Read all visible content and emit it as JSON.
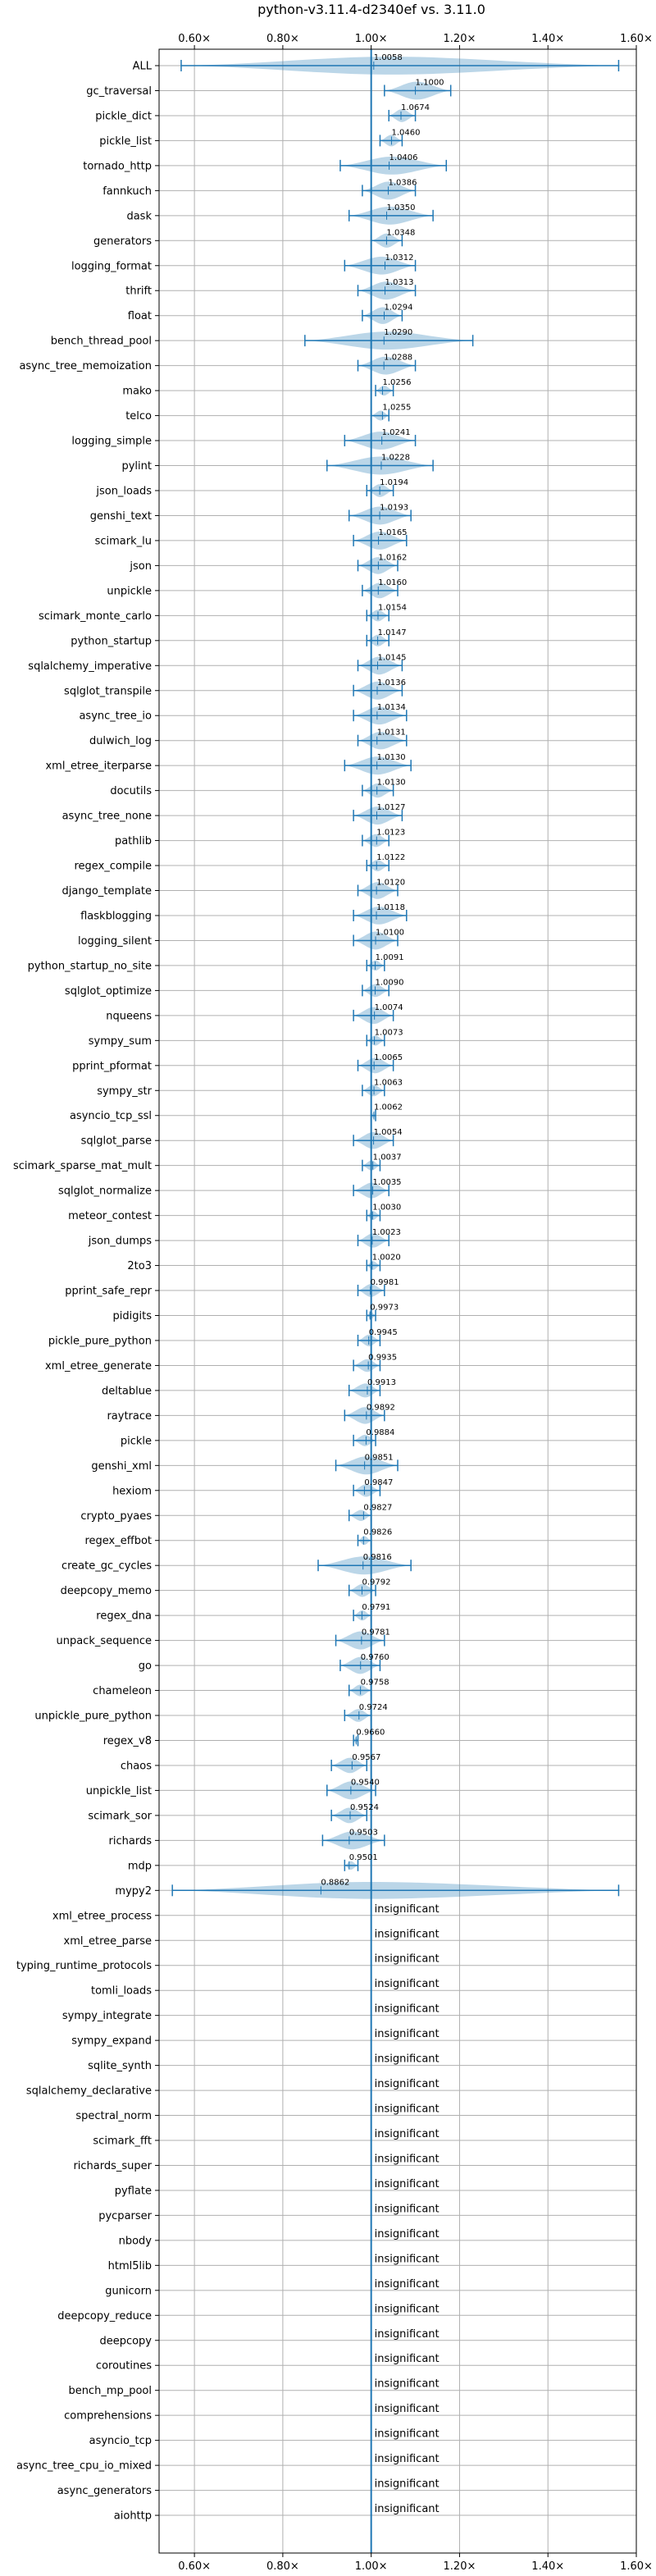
{
  "chart_data": {
    "type": "violin",
    "title": "python-v3.11.4-d2340ef vs. 3.11.0",
    "xlim": [
      0.52,
      1.6
    ],
    "x_ticks": [
      0.6,
      0.8,
      1.0,
      1.2,
      1.4,
      1.6
    ],
    "x_tick_labels": [
      "0.60×",
      "0.80×",
      "1.00×",
      "1.20×",
      "1.40×",
      "1.60×"
    ],
    "reference_line": 1.0,
    "grid": true,
    "color": "#1f77b4",
    "insignificant_label": "insignificant",
    "benchmarks": [
      {
        "name": "ALL",
        "mean": 1.0058,
        "lo": 0.57,
        "hi": 1.56
      },
      {
        "name": "gc_traversal",
        "mean": 1.1,
        "lo": 1.03,
        "hi": 1.18
      },
      {
        "name": "pickle_dict",
        "mean": 1.0674,
        "lo": 1.04,
        "hi": 1.1
      },
      {
        "name": "pickle_list",
        "mean": 1.046,
        "lo": 1.02,
        "hi": 1.07
      },
      {
        "name": "tornado_http",
        "mean": 1.0406,
        "lo": 0.93,
        "hi": 1.17
      },
      {
        "name": "fannkuch",
        "mean": 1.0386,
        "lo": 0.98,
        "hi": 1.1
      },
      {
        "name": "dask",
        "mean": 1.035,
        "lo": 0.95,
        "hi": 1.14
      },
      {
        "name": "generators",
        "mean": 1.0348,
        "lo": 1.0,
        "hi": 1.07
      },
      {
        "name": "logging_format",
        "mean": 1.0312,
        "lo": 0.94,
        "hi": 1.1
      },
      {
        "name": "thrift",
        "mean": 1.0313,
        "lo": 0.97,
        "hi": 1.1
      },
      {
        "name": "float",
        "mean": 1.0294,
        "lo": 0.98,
        "hi": 1.07
      },
      {
        "name": "bench_thread_pool",
        "mean": 1.029,
        "lo": 0.85,
        "hi": 1.23
      },
      {
        "name": "async_tree_memoization",
        "mean": 1.0288,
        "lo": 0.97,
        "hi": 1.1
      },
      {
        "name": "mako",
        "mean": 1.0256,
        "lo": 1.01,
        "hi": 1.05
      },
      {
        "name": "telco",
        "mean": 1.0255,
        "lo": 1.0,
        "hi": 1.04
      },
      {
        "name": "logging_simple",
        "mean": 1.0241,
        "lo": 0.94,
        "hi": 1.1
      },
      {
        "name": "pylint",
        "mean": 1.0228,
        "lo": 0.9,
        "hi": 1.14
      },
      {
        "name": "json_loads",
        "mean": 1.0194,
        "lo": 0.99,
        "hi": 1.05
      },
      {
        "name": "genshi_text",
        "mean": 1.0193,
        "lo": 0.95,
        "hi": 1.09
      },
      {
        "name": "scimark_lu",
        "mean": 1.0165,
        "lo": 0.96,
        "hi": 1.08
      },
      {
        "name": "json",
        "mean": 1.0162,
        "lo": 0.97,
        "hi": 1.06
      },
      {
        "name": "unpickle",
        "mean": 1.016,
        "lo": 0.98,
        "hi": 1.06
      },
      {
        "name": "scimark_monte_carlo",
        "mean": 1.0154,
        "lo": 0.99,
        "hi": 1.04
      },
      {
        "name": "python_startup",
        "mean": 1.0147,
        "lo": 0.99,
        "hi": 1.04
      },
      {
        "name": "sqlalchemy_imperative",
        "mean": 1.0145,
        "lo": 0.97,
        "hi": 1.07
      },
      {
        "name": "sqlglot_transpile",
        "mean": 1.0136,
        "lo": 0.96,
        "hi": 1.07
      },
      {
        "name": "async_tree_io",
        "mean": 1.0134,
        "lo": 0.96,
        "hi": 1.08
      },
      {
        "name": "dulwich_log",
        "mean": 1.0131,
        "lo": 0.97,
        "hi": 1.08
      },
      {
        "name": "xml_etree_iterparse",
        "mean": 1.013,
        "lo": 0.94,
        "hi": 1.09
      },
      {
        "name": "docutils",
        "mean": 1.013,
        "lo": 0.98,
        "hi": 1.05
      },
      {
        "name": "async_tree_none",
        "mean": 1.0127,
        "lo": 0.96,
        "hi": 1.07
      },
      {
        "name": "pathlib",
        "mean": 1.0123,
        "lo": 0.98,
        "hi": 1.04
      },
      {
        "name": "regex_compile",
        "mean": 1.0122,
        "lo": 0.99,
        "hi": 1.04
      },
      {
        "name": "django_template",
        "mean": 1.012,
        "lo": 0.97,
        "hi": 1.06
      },
      {
        "name": "flaskblogging",
        "mean": 1.0118,
        "lo": 0.96,
        "hi": 1.08
      },
      {
        "name": "logging_silent",
        "mean": 1.01,
        "lo": 0.96,
        "hi": 1.06
      },
      {
        "name": "python_startup_no_site",
        "mean": 1.0091,
        "lo": 0.99,
        "hi": 1.03
      },
      {
        "name": "sqlglot_optimize",
        "mean": 1.009,
        "lo": 0.98,
        "hi": 1.04
      },
      {
        "name": "nqueens",
        "mean": 1.0074,
        "lo": 0.96,
        "hi": 1.05
      },
      {
        "name": "sympy_sum",
        "mean": 1.0073,
        "lo": 0.99,
        "hi": 1.03
      },
      {
        "name": "pprint_pformat",
        "mean": 1.0065,
        "lo": 0.97,
        "hi": 1.05
      },
      {
        "name": "sympy_str",
        "mean": 1.0063,
        "lo": 0.98,
        "hi": 1.03
      },
      {
        "name": "asyncio_tcp_ssl",
        "mean": 1.0062,
        "lo": 1.0,
        "hi": 1.01
      },
      {
        "name": "sqlglot_parse",
        "mean": 1.0054,
        "lo": 0.96,
        "hi": 1.05
      },
      {
        "name": "scimark_sparse_mat_mult",
        "mean": 1.0037,
        "lo": 0.98,
        "hi": 1.02
      },
      {
        "name": "sqlglot_normalize",
        "mean": 1.0035,
        "lo": 0.96,
        "hi": 1.04
      },
      {
        "name": "meteor_contest",
        "mean": 1.003,
        "lo": 0.99,
        "hi": 1.02
      },
      {
        "name": "json_dumps",
        "mean": 1.0023,
        "lo": 0.97,
        "hi": 1.04
      },
      {
        "name": "2to3",
        "mean": 1.002,
        "lo": 0.99,
        "hi": 1.02
      },
      {
        "name": "pprint_safe_repr",
        "mean": 0.9981,
        "lo": 0.97,
        "hi": 1.03
      },
      {
        "name": "pidigits",
        "mean": 0.9973,
        "lo": 0.99,
        "hi": 1.01
      },
      {
        "name": "pickle_pure_python",
        "mean": 0.9945,
        "lo": 0.97,
        "hi": 1.02
      },
      {
        "name": "xml_etree_generate",
        "mean": 0.9935,
        "lo": 0.96,
        "hi": 1.02
      },
      {
        "name": "deltablue",
        "mean": 0.9913,
        "lo": 0.95,
        "hi": 1.02
      },
      {
        "name": "raytrace",
        "mean": 0.9892,
        "lo": 0.94,
        "hi": 1.03
      },
      {
        "name": "pickle",
        "mean": 0.9884,
        "lo": 0.96,
        "hi": 1.01
      },
      {
        "name": "genshi_xml",
        "mean": 0.9851,
        "lo": 0.92,
        "hi": 1.06
      },
      {
        "name": "hexiom",
        "mean": 0.9847,
        "lo": 0.96,
        "hi": 1.02
      },
      {
        "name": "crypto_pyaes",
        "mean": 0.9827,
        "lo": 0.95,
        "hi": 1.0
      },
      {
        "name": "regex_effbot",
        "mean": 0.9826,
        "lo": 0.97,
        "hi": 1.0
      },
      {
        "name": "create_gc_cycles",
        "mean": 0.9816,
        "lo": 0.88,
        "hi": 1.09
      },
      {
        "name": "deepcopy_memo",
        "mean": 0.9792,
        "lo": 0.95,
        "hi": 1.01
      },
      {
        "name": "regex_dna",
        "mean": 0.9791,
        "lo": 0.96,
        "hi": 1.0
      },
      {
        "name": "unpack_sequence",
        "mean": 0.9781,
        "lo": 0.92,
        "hi": 1.03
      },
      {
        "name": "go",
        "mean": 0.976,
        "lo": 0.93,
        "hi": 1.02
      },
      {
        "name": "chameleon",
        "mean": 0.9758,
        "lo": 0.95,
        "hi": 1.0
      },
      {
        "name": "unpickle_pure_python",
        "mean": 0.9724,
        "lo": 0.94,
        "hi": 1.0
      },
      {
        "name": "regex_v8",
        "mean": 0.966,
        "lo": 0.96,
        "hi": 0.97
      },
      {
        "name": "chaos",
        "mean": 0.9567,
        "lo": 0.91,
        "hi": 0.99
      },
      {
        "name": "unpickle_list",
        "mean": 0.954,
        "lo": 0.9,
        "hi": 1.01
      },
      {
        "name": "scimark_sor",
        "mean": 0.9524,
        "lo": 0.91,
        "hi": 0.99
      },
      {
        "name": "richards",
        "mean": 0.9503,
        "lo": 0.89,
        "hi": 1.03
      },
      {
        "name": "mdp",
        "mean": 0.9501,
        "lo": 0.94,
        "hi": 0.97
      },
      {
        "name": "mypy2",
        "mean": 0.8862,
        "lo": 0.55,
        "hi": 1.56
      },
      {
        "name": "xml_etree_process",
        "insignificant": true
      },
      {
        "name": "xml_etree_parse",
        "insignificant": true
      },
      {
        "name": "typing_runtime_protocols",
        "insignificant": true
      },
      {
        "name": "tomli_loads",
        "insignificant": true
      },
      {
        "name": "sympy_integrate",
        "insignificant": true
      },
      {
        "name": "sympy_expand",
        "insignificant": true
      },
      {
        "name": "sqlite_synth",
        "insignificant": true
      },
      {
        "name": "sqlalchemy_declarative",
        "insignificant": true
      },
      {
        "name": "spectral_norm",
        "insignificant": true
      },
      {
        "name": "scimark_fft",
        "insignificant": true
      },
      {
        "name": "richards_super",
        "insignificant": true
      },
      {
        "name": "pyflate",
        "insignificant": true
      },
      {
        "name": "pycparser",
        "insignificant": true
      },
      {
        "name": "nbody",
        "insignificant": true
      },
      {
        "name": "html5lib",
        "insignificant": true
      },
      {
        "name": "gunicorn",
        "insignificant": true
      },
      {
        "name": "deepcopy_reduce",
        "insignificant": true
      },
      {
        "name": "deepcopy",
        "insignificant": true
      },
      {
        "name": "coroutines",
        "insignificant": true
      },
      {
        "name": "bench_mp_pool",
        "insignificant": true
      },
      {
        "name": "comprehensions",
        "insignificant": true
      },
      {
        "name": "asyncio_tcp",
        "insignificant": true
      },
      {
        "name": "async_tree_cpu_io_mixed",
        "insignificant": true
      },
      {
        "name": "async_generators",
        "insignificant": true
      },
      {
        "name": "aiohttp",
        "insignificant": true
      }
    ]
  }
}
